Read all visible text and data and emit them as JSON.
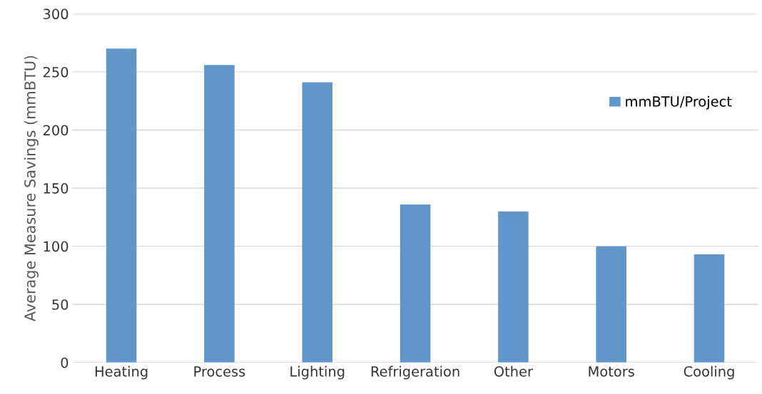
{
  "chart_data": {
    "type": "bar",
    "ylabel": "Average Measure Savings (mmBTU)",
    "categories": [
      "Heating",
      "Process",
      "Lighting",
      "Refrigeration",
      "Other",
      "Motors",
      "Cooling"
    ],
    "series": [
      {
        "name": "mmBTU/Project",
        "color": "#6096c9",
        "values": [
          270,
          256,
          241,
          136,
          130,
          100,
          93
        ]
      }
    ],
    "ylim": [
      0,
      300
    ],
    "yticks": [
      0,
      50,
      100,
      150,
      200,
      250,
      300
    ],
    "grid": "y",
    "legend": "top right"
  }
}
